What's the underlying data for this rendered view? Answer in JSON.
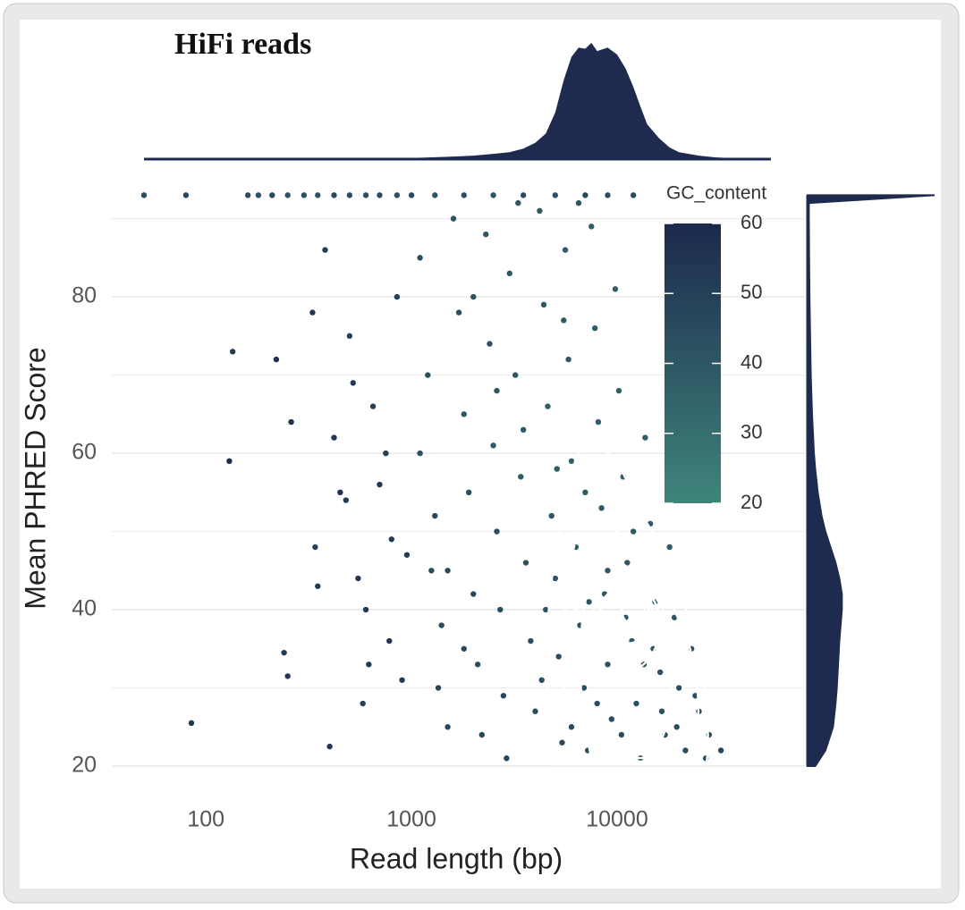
{
  "chart_data": [
    {
      "type": "scatter",
      "title": "HiFi reads",
      "x_label": "Read length (bp)",
      "y_label": "Mean PHRED Score",
      "x_log": true,
      "xlim": [
        50,
        56000
      ],
      "xticks": [
        100,
        1000,
        10000
      ],
      "ylim": [
        20,
        93.5
      ],
      "yticks": [
        20,
        40,
        60,
        80
      ],
      "minor_yticks": [
        30,
        50,
        70,
        90
      ],
      "grid": true,
      "colorbar": {
        "title": "GC_content",
        "lim": [
          20,
          60
        ],
        "ticks": [
          20,
          30,
          40,
          50,
          60
        ],
        "colors": [
          "#3f857b",
          "#1c294d"
        ]
      },
      "points": [
        [
          50,
          93,
          45
        ],
        [
          80,
          93,
          48
        ],
        [
          160,
          93,
          44
        ],
        [
          180,
          93,
          42
        ],
        [
          210,
          93,
          46
        ],
        [
          250,
          93,
          40
        ],
        [
          300,
          93,
          43
        ],
        [
          350,
          93,
          41
        ],
        [
          420,
          93,
          47
        ],
        [
          500,
          93,
          44
        ],
        [
          600,
          93,
          42
        ],
        [
          700,
          93,
          45
        ],
        [
          850,
          93,
          43
        ],
        [
          1000,
          93,
          46
        ],
        [
          1300,
          93,
          41
        ],
        [
          1800,
          93,
          44
        ],
        [
          2500,
          93,
          42
        ],
        [
          3500,
          93,
          45
        ],
        [
          5000,
          93,
          43
        ],
        [
          7000,
          93,
          47
        ],
        [
          9000,
          93,
          44
        ],
        [
          12000,
          93,
          46
        ],
        [
          85,
          25.5,
          55
        ],
        [
          130,
          59,
          58
        ],
        [
          135,
          73,
          52
        ],
        [
          220,
          72,
          56
        ],
        [
          260,
          64,
          57
        ],
        [
          240,
          34.5,
          53
        ],
        [
          250,
          31.5,
          54
        ],
        [
          330,
          78,
          55
        ],
        [
          340,
          48,
          50
        ],
        [
          350,
          43,
          52
        ],
        [
          380,
          86,
          51
        ],
        [
          400,
          22.5,
          54
        ],
        [
          420,
          62,
          53
        ],
        [
          450,
          55,
          56
        ],
        [
          480,
          54,
          52
        ],
        [
          500,
          75,
          50
        ],
        [
          520,
          69,
          53
        ],
        [
          550,
          44,
          55
        ],
        [
          580,
          28,
          51
        ],
        [
          600,
          40,
          54
        ],
        [
          620,
          33,
          52
        ],
        [
          650,
          66,
          50
        ],
        [
          700,
          56,
          53
        ],
        [
          750,
          60,
          51
        ],
        [
          780,
          36,
          55
        ],
        [
          800,
          49,
          52
        ],
        [
          850,
          80,
          50
        ],
        [
          900,
          31,
          53
        ],
        [
          950,
          47,
          51
        ],
        [
          1100,
          85,
          45
        ],
        [
          1200,
          70,
          43
        ],
        [
          1300,
          52,
          46
        ],
        [
          1400,
          38,
          44
        ],
        [
          1500,
          25,
          47
        ],
        [
          1100,
          60,
          42
        ],
        [
          1250,
          45,
          45
        ],
        [
          1350,
          30,
          48
        ],
        [
          1600,
          90,
          41
        ],
        [
          1700,
          78,
          44
        ],
        [
          1800,
          65,
          40
        ],
        [
          1900,
          55,
          43
        ],
        [
          2000,
          42,
          46
        ],
        [
          2100,
          33,
          44
        ],
        [
          2200,
          24,
          47
        ],
        [
          2300,
          88,
          40
        ],
        [
          2400,
          74,
          42
        ],
        [
          2500,
          61,
          39
        ],
        [
          2600,
          50,
          43
        ],
        [
          2700,
          40,
          45
        ],
        [
          2800,
          29,
          46
        ],
        [
          2900,
          21,
          48
        ],
        [
          3000,
          83,
          40
        ],
        [
          3200,
          70,
          41
        ],
        [
          3400,
          57,
          38
        ],
        [
          3600,
          46,
          42
        ],
        [
          3800,
          36,
          44
        ],
        [
          4000,
          27,
          45
        ],
        [
          4200,
          91,
          39
        ],
        [
          4400,
          79,
          40
        ],
        [
          4600,
          66,
          37
        ],
        [
          4800,
          52,
          41
        ],
        [
          5000,
          44,
          43
        ],
        [
          5200,
          34,
          44
        ],
        [
          5400,
          23,
          46
        ],
        [
          5600,
          86,
          38
        ],
        [
          5800,
          72,
          39
        ],
        [
          6000,
          59,
          36
        ],
        [
          6300,
          48,
          40
        ],
        [
          6600,
          38,
          42
        ],
        [
          6900,
          30,
          43
        ],
        [
          7200,
          22,
          45
        ],
        [
          7500,
          89,
          37
        ],
        [
          7800,
          76,
          38
        ],
        [
          8100,
          64,
          36
        ],
        [
          8400,
          53,
          39
        ],
        [
          8700,
          42,
          41
        ],
        [
          9000,
          33,
          42
        ],
        [
          9400,
          26,
          44
        ],
        [
          9800,
          81,
          37
        ],
        [
          10200,
          68,
          36
        ],
        [
          10700,
          57,
          38
        ],
        [
          11200,
          46,
          40
        ],
        [
          11800,
          36,
          41
        ],
        [
          12400,
          28,
          43
        ],
        [
          13000,
          21,
          45
        ],
        [
          13700,
          62,
          37
        ],
        [
          14500,
          51,
          39
        ],
        [
          15300,
          41,
          40
        ],
        [
          16200,
          32,
          42
        ],
        [
          17100,
          24,
          44
        ],
        [
          18000,
          48,
          39
        ],
        [
          19000,
          39,
          41
        ],
        [
          20000,
          30,
          43
        ],
        [
          21500,
          22,
          45
        ],
        [
          23000,
          35,
          42
        ],
        [
          25000,
          27,
          44
        ],
        [
          28000,
          24,
          46
        ],
        [
          32000,
          22,
          48
        ],
        [
          3300,
          92,
          41
        ],
        [
          6500,
          92,
          40
        ],
        [
          2000,
          80,
          42
        ],
        [
          1500,
          45,
          46
        ],
        [
          4500,
          40,
          43
        ],
        [
          7000,
          55,
          38
        ],
        [
          9000,
          45,
          40
        ],
        [
          12000,
          50,
          38
        ],
        [
          15000,
          35,
          41
        ],
        [
          6000,
          25,
          45
        ],
        [
          8000,
          28,
          44
        ],
        [
          10500,
          24,
          45
        ],
        [
          3500,
          63,
          39
        ],
        [
          2600,
          68,
          40
        ],
        [
          5500,
          77,
          38
        ],
        [
          1800,
          35,
          46
        ],
        [
          4300,
          31,
          44
        ],
        [
          11000,
          39,
          40
        ],
        [
          13500,
          33,
          42
        ],
        [
          16500,
          27,
          43
        ],
        [
          19500,
          25,
          44
        ],
        [
          24000,
          29,
          43
        ],
        [
          27000,
          21,
          47
        ],
        [
          7300,
          41,
          41
        ],
        [
          5100,
          58,
          38
        ]
      ]
    },
    {
      "type": "area",
      "orientation": "vertical",
      "color": "#1e2b4e",
      "ylim": [
        0,
        100
      ],
      "x": [
        50,
        200,
        500,
        1000,
        1500,
        2000,
        2500,
        3000,
        3500,
        4000,
        4500,
        5000,
        5500,
        6000,
        6500,
        7000,
        7500,
        8000,
        9000,
        10000,
        11000,
        12000,
        13000,
        14000,
        16000,
        18000,
        20000,
        25000,
        30000,
        40000,
        56000
      ],
      "values": [
        0,
        0.3,
        0.5,
        1,
        2,
        3,
        4.5,
        6,
        9,
        14,
        22,
        40,
        68,
        88,
        96,
        95,
        100,
        93,
        96,
        90,
        78,
        62,
        45,
        30,
        18,
        10,
        6,
        3,
        1.5,
        0.5,
        0
      ]
    },
    {
      "type": "area",
      "orientation": "horizontal",
      "color": "#1e2b4e",
      "xlim": [
        0,
        100
      ],
      "x": [
        20,
        22,
        25,
        28,
        30,
        33,
        36,
        38,
        40,
        42,
        44,
        46,
        48,
        50,
        52,
        55,
        58,
        60,
        65,
        70,
        75,
        80,
        85,
        90,
        92,
        93
      ],
      "values": [
        6,
        14,
        20,
        22,
        23,
        24,
        25,
        26,
        27,
        27,
        25,
        22,
        18,
        14,
        11,
        8,
        6,
        5,
        3.5,
        2.5,
        2,
        1.5,
        1.2,
        1,
        1,
        100
      ]
    }
  ]
}
